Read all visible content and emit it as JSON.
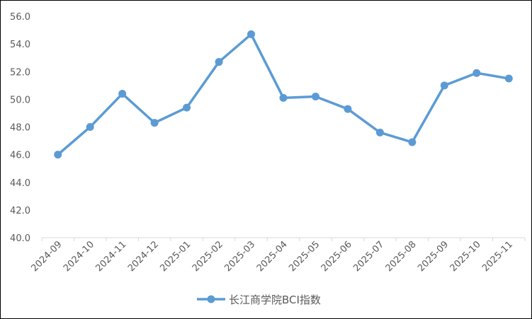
{
  "chart_data": {
    "type": "line",
    "categories": [
      "2024-09",
      "2024-10",
      "2024-11",
      "2024-12",
      "2025-01",
      "2025-02",
      "2025-03",
      "2025-04",
      "2025-05",
      "2025-06",
      "2025-07",
      "2025-08",
      "2025-09",
      "2025-10",
      "2025-11"
    ],
    "series": [
      {
        "name": "长江商学院BCI指数",
        "values": [
          46.0,
          48.0,
          50.4,
          48.3,
          49.4,
          52.7,
          54.7,
          50.1,
          50.2,
          49.3,
          47.6,
          46.9,
          51.0,
          51.9,
          51.5
        ],
        "color": "#5B9BD5",
        "marker": "circle"
      }
    ],
    "ylim": [
      40.0,
      56.0
    ],
    "yticks": [
      "40.0",
      "42.0",
      "44.0",
      "46.0",
      "48.0",
      "50.0",
      "52.0",
      "54.0",
      "56.0"
    ],
    "grid": false,
    "legend": "bottom-center",
    "x_tick_rotation": "-45deg"
  }
}
